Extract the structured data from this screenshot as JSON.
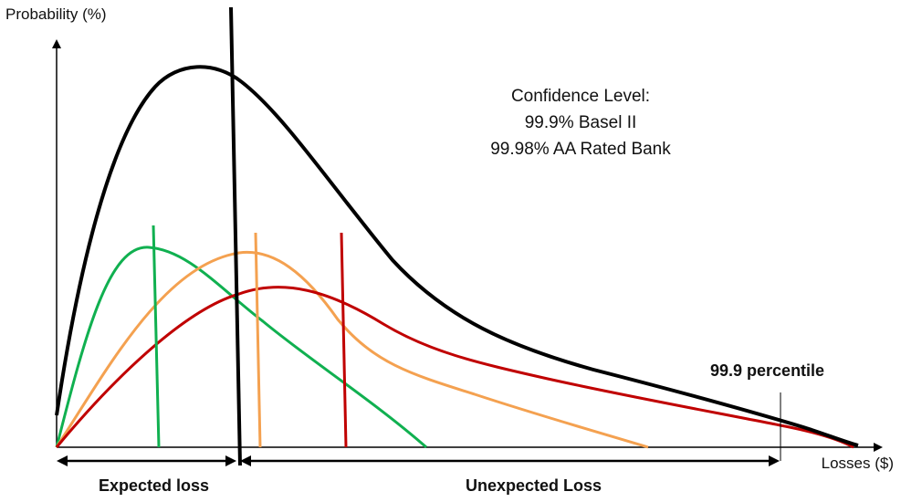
{
  "axes": {
    "y_label": "Probability (%)",
    "x_label": "Losses ($)"
  },
  "annotation": {
    "title": "Confidence Level:",
    "line1": "99.9% Basel II",
    "line2": "99.98% AA Rated Bank"
  },
  "percentile_label": "99.9 percentile",
  "ranges": {
    "expected": "Expected loss",
    "unexpected": "Unexpected Loss"
  },
  "colors": {
    "aggregate": "#000000",
    "green": "#10b050",
    "orange": "#f4a150",
    "red": "#c00000",
    "axis": "#000000"
  }
}
